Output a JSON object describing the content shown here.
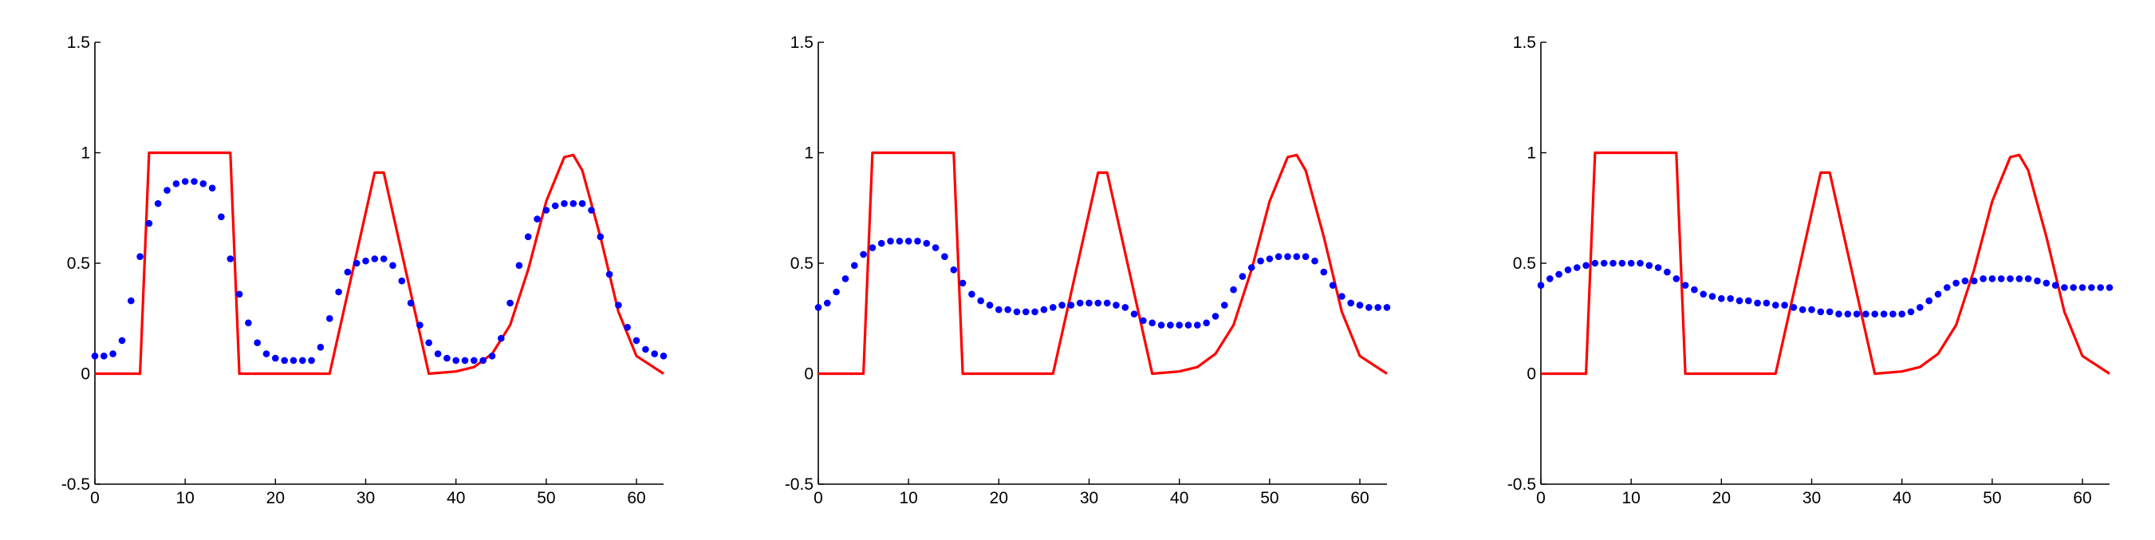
{
  "colors": {
    "signal": "#ff0000",
    "estimate": "#0000ff",
    "axis": "#000000"
  },
  "chart_data": [
    {
      "type": "line",
      "xlim": [
        0,
        63
      ],
      "ylim": [
        -0.5,
        1.5
      ],
      "xticks": [
        "0",
        "10",
        "20",
        "30",
        "40",
        "50",
        "60"
      ],
      "yticks": [
        "-0.5",
        "0",
        "0.5",
        "1",
        "1.5"
      ],
      "grid": false,
      "series": [
        {
          "style": "line",
          "color": "#ff0000",
          "x": [
            0,
            5,
            6,
            15,
            16,
            26,
            31,
            32,
            37,
            40,
            42,
            44,
            46,
            48,
            50,
            52,
            53,
            54,
            56,
            58,
            60,
            63
          ],
          "y": [
            0,
            0,
            1,
            1,
            0,
            0,
            0.91,
            0.91,
            0,
            0.01,
            0.03,
            0.09,
            0.22,
            0.47,
            0.78,
            0.98,
            0.99,
            0.92,
            0.62,
            0.28,
            0.08,
            0
          ]
        },
        {
          "style": "dots",
          "color": "#0000ff",
          "x": [
            0,
            1,
            2,
            3,
            4,
            5,
            6,
            7,
            8,
            9,
            10,
            11,
            12,
            13,
            14,
            15,
            16,
            17,
            18,
            19,
            20,
            21,
            22,
            23,
            24,
            25,
            26,
            27,
            28,
            29,
            30,
            31,
            32,
            33,
            34,
            35,
            36,
            37,
            38,
            39,
            40,
            41,
            42,
            43,
            44,
            45,
            46,
            47,
            48,
            49,
            50,
            51,
            52,
            53,
            54,
            55,
            56,
            57,
            58,
            59,
            60,
            61,
            62,
            63
          ],
          "y": [
            0.08,
            0.08,
            0.09,
            0.15,
            0.33,
            0.53,
            0.68,
            0.77,
            0.83,
            0.86,
            0.87,
            0.87,
            0.86,
            0.84,
            0.71,
            0.52,
            0.36,
            0.23,
            0.14,
            0.09,
            0.07,
            0.06,
            0.06,
            0.06,
            0.06,
            0.12,
            0.25,
            0.37,
            0.46,
            0.5,
            0.51,
            0.52,
            0.52,
            0.49,
            0.42,
            0.32,
            0.22,
            0.14,
            0.09,
            0.07,
            0.06,
            0.06,
            0.06,
            0.06,
            0.08,
            0.16,
            0.32,
            0.49,
            0.62,
            0.7,
            0.74,
            0.76,
            0.77,
            0.77,
            0.77,
            0.74,
            0.62,
            0.45,
            0.31,
            0.21,
            0.15,
            0.11,
            0.09,
            0.08
          ]
        }
      ]
    },
    {
      "type": "line",
      "xlim": [
        0,
        63
      ],
      "ylim": [
        -0.5,
        1.5
      ],
      "xticks": [
        "0",
        "10",
        "20",
        "30",
        "40",
        "50",
        "60"
      ],
      "yticks": [
        "-0.5",
        "0",
        "0.5",
        "1",
        "1.5"
      ],
      "grid": false,
      "series": [
        {
          "style": "line",
          "color": "#ff0000",
          "x": [
            0,
            5,
            6,
            15,
            16,
            26,
            31,
            32,
            37,
            40,
            42,
            44,
            46,
            48,
            50,
            52,
            53,
            54,
            56,
            58,
            60,
            63
          ],
          "y": [
            0,
            0,
            1,
            1,
            0,
            0,
            0.91,
            0.91,
            0,
            0.01,
            0.03,
            0.09,
            0.22,
            0.47,
            0.78,
            0.98,
            0.99,
            0.92,
            0.62,
            0.28,
            0.08,
            0
          ]
        },
        {
          "style": "dots",
          "color": "#0000ff",
          "x": [
            0,
            1,
            2,
            3,
            4,
            5,
            6,
            7,
            8,
            9,
            10,
            11,
            12,
            13,
            14,
            15,
            16,
            17,
            18,
            19,
            20,
            21,
            22,
            23,
            24,
            25,
            26,
            27,
            28,
            29,
            30,
            31,
            32,
            33,
            34,
            35,
            36,
            37,
            38,
            39,
            40,
            41,
            42,
            43,
            44,
            45,
            46,
            47,
            48,
            49,
            50,
            51,
            52,
            53,
            54,
            55,
            56,
            57,
            58,
            59,
            60,
            61,
            62,
            63
          ],
          "y": [
            0.3,
            0.32,
            0.37,
            0.43,
            0.49,
            0.54,
            0.57,
            0.59,
            0.6,
            0.6,
            0.6,
            0.6,
            0.59,
            0.57,
            0.53,
            0.47,
            0.41,
            0.36,
            0.33,
            0.31,
            0.29,
            0.29,
            0.28,
            0.28,
            0.28,
            0.29,
            0.3,
            0.31,
            0.31,
            0.32,
            0.32,
            0.32,
            0.32,
            0.31,
            0.3,
            0.27,
            0.24,
            0.23,
            0.22,
            0.22,
            0.22,
            0.22,
            0.22,
            0.23,
            0.26,
            0.31,
            0.38,
            0.44,
            0.48,
            0.51,
            0.52,
            0.53,
            0.53,
            0.53,
            0.53,
            0.51,
            0.46,
            0.4,
            0.35,
            0.32,
            0.31,
            0.3,
            0.3,
            0.3
          ]
        }
      ]
    },
    {
      "type": "line",
      "xlim": [
        0,
        63
      ],
      "ylim": [
        -0.5,
        1.5
      ],
      "xticks": [
        "0",
        "10",
        "20",
        "30",
        "40",
        "50",
        "60"
      ],
      "yticks": [
        "-0.5",
        "0",
        "0.5",
        "1",
        "1.5"
      ],
      "grid": false,
      "series": [
        {
          "style": "line",
          "color": "#ff0000",
          "x": [
            0,
            5,
            6,
            15,
            16,
            26,
            31,
            32,
            37,
            40,
            42,
            44,
            46,
            48,
            50,
            52,
            53,
            54,
            56,
            58,
            60,
            63
          ],
          "y": [
            0,
            0,
            1,
            1,
            0,
            0,
            0.91,
            0.91,
            0,
            0.01,
            0.03,
            0.09,
            0.22,
            0.47,
            0.78,
            0.98,
            0.99,
            0.92,
            0.62,
            0.28,
            0.08,
            0
          ]
        },
        {
          "style": "dots",
          "color": "#0000ff",
          "x": [
            0,
            1,
            2,
            3,
            4,
            5,
            6,
            7,
            8,
            9,
            10,
            11,
            12,
            13,
            14,
            15,
            16,
            17,
            18,
            19,
            20,
            21,
            22,
            23,
            24,
            25,
            26,
            27,
            28,
            29,
            30,
            31,
            32,
            33,
            34,
            35,
            36,
            37,
            38,
            39,
            40,
            41,
            42,
            43,
            44,
            45,
            46,
            47,
            48,
            49,
            50,
            51,
            52,
            53,
            54,
            55,
            56,
            57,
            58,
            59,
            60,
            61,
            62,
            63
          ],
          "y": [
            0.4,
            0.43,
            0.45,
            0.47,
            0.48,
            0.49,
            0.5,
            0.5,
            0.5,
            0.5,
            0.5,
            0.5,
            0.49,
            0.48,
            0.46,
            0.43,
            0.4,
            0.38,
            0.36,
            0.35,
            0.34,
            0.34,
            0.33,
            0.33,
            0.32,
            0.32,
            0.31,
            0.31,
            0.3,
            0.29,
            0.29,
            0.28,
            0.28,
            0.27,
            0.27,
            0.27,
            0.27,
            0.27,
            0.27,
            0.27,
            0.27,
            0.28,
            0.3,
            0.33,
            0.36,
            0.39,
            0.41,
            0.42,
            0.42,
            0.43,
            0.43,
            0.43,
            0.43,
            0.43,
            0.43,
            0.42,
            0.41,
            0.4,
            0.39,
            0.39,
            0.39,
            0.39,
            0.39,
            0.39
          ]
        }
      ]
    }
  ]
}
